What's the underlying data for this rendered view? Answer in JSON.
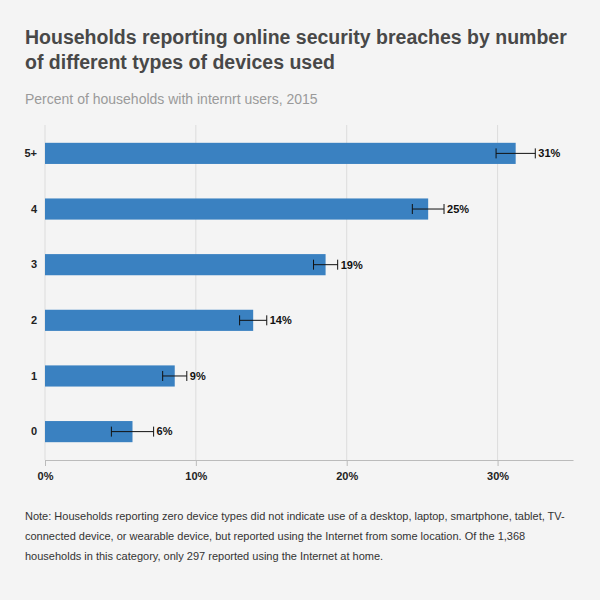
{
  "chart_data": {
    "type": "bar",
    "orientation": "horizontal",
    "title": "Households reporting online security breaches by number of different types of devices used",
    "subtitle": "Percent of households with internrt users, 2015",
    "categories": [
      "5+",
      "4",
      "3",
      "2",
      "1",
      "0"
    ],
    "values": [
      31.2,
      25.4,
      18.6,
      13.8,
      8.6,
      5.8
    ],
    "errors": [
      1.3,
      1.05,
      0.8,
      0.9,
      0.8,
      1.4
    ],
    "value_labels": [
      "31%",
      "25%",
      "19%",
      "14%",
      "9%",
      "6%"
    ],
    "data_labels": true,
    "color": "#3a81c1",
    "xlim": [
      0,
      35
    ],
    "xticks": [
      {
        "value": 0,
        "label": "0%"
      },
      {
        "value": 10,
        "label": "10%"
      },
      {
        "value": 20,
        "label": "20%"
      },
      {
        "value": 30,
        "label": "30%"
      }
    ],
    "grid": true,
    "note": "Note: Households reporting zero device types did not indicate use of a desktop, laptop, smartphone, tablet, TV-connected device, or wearable device, but reported using the Internet from some location. Of the 1,368 households in this category, only 297 reported using the Internet at home."
  }
}
